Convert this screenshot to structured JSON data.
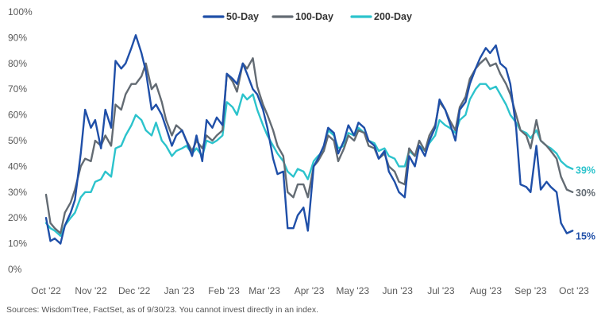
{
  "chart_data": {
    "type": "line",
    "title": "",
    "xlabel": "",
    "ylabel": "",
    "ylim": [
      0,
      100
    ],
    "y_ticks": [
      0,
      10,
      20,
      30,
      40,
      50,
      60,
      70,
      80,
      90,
      100
    ],
    "y_tick_labels": [
      "0%",
      "10%",
      "20%",
      "30%",
      "40%",
      "50%",
      "60%",
      "70%",
      "80%",
      "90%",
      "100%"
    ],
    "x_range": [
      "2022-10-01",
      "2023-09-30"
    ],
    "x_ticks": [
      "2022-10-01",
      "2022-11-01",
      "2022-12-01",
      "2023-01-01",
      "2023-02-01",
      "2023-03-01",
      "2023-04-01",
      "2023-05-01",
      "2023-06-01",
      "2023-07-01",
      "2023-08-01",
      "2023-09-01",
      "2023-10-01"
    ],
    "x_tick_labels": [
      "Oct '22",
      "Nov '22",
      "Dec '22",
      "Jan '23",
      "Feb '23",
      "Mar '23",
      "Apr '23",
      "May '23",
      "Jun '23",
      "Jul '23",
      "Aug '23",
      "Sep '23",
      "Oct '23"
    ],
    "grid": false,
    "legend_position": "top-center",
    "series": [
      {
        "name": "50-Day",
        "color": "#1f4fa8",
        "end_label": "15%",
        "x": [
          "2022-10-01",
          "2022-10-04",
          "2022-10-07",
          "2022-10-11",
          "2022-10-14",
          "2022-10-18",
          "2022-10-21",
          "2022-10-25",
          "2022-10-28",
          "2022-11-01",
          "2022-11-04",
          "2022-11-08",
          "2022-11-11",
          "2022-11-15",
          "2022-11-18",
          "2022-11-22",
          "2022-11-25",
          "2022-11-29",
          "2022-12-02",
          "2022-12-06",
          "2022-12-09",
          "2022-12-13",
          "2022-12-16",
          "2022-12-20",
          "2022-12-23",
          "2022-12-27",
          "2022-12-30",
          "2023-01-03",
          "2023-01-06",
          "2023-01-10",
          "2023-01-13",
          "2023-01-17",
          "2023-01-20",
          "2023-01-24",
          "2023-01-27",
          "2023-01-31",
          "2023-02-03",
          "2023-02-07",
          "2023-02-10",
          "2023-02-14",
          "2023-02-17",
          "2023-02-21",
          "2023-02-24",
          "2023-02-28",
          "2023-03-03",
          "2023-03-07",
          "2023-03-10",
          "2023-03-14",
          "2023-03-17",
          "2023-03-21",
          "2023-03-24",
          "2023-03-28",
          "2023-03-31",
          "2023-04-04",
          "2023-04-07",
          "2023-04-11",
          "2023-04-14",
          "2023-04-18",
          "2023-04-21",
          "2023-04-25",
          "2023-04-28",
          "2023-05-02",
          "2023-05-05",
          "2023-05-09",
          "2023-05-12",
          "2023-05-16",
          "2023-05-19",
          "2023-05-23",
          "2023-05-26",
          "2023-05-30",
          "2023-06-02",
          "2023-06-06",
          "2023-06-09",
          "2023-06-13",
          "2023-06-16",
          "2023-06-20",
          "2023-06-23",
          "2023-06-27",
          "2023-06-30",
          "2023-07-04",
          "2023-07-07",
          "2023-07-11",
          "2023-07-14",
          "2023-07-18",
          "2023-07-21",
          "2023-07-25",
          "2023-07-28",
          "2023-08-01",
          "2023-08-04",
          "2023-08-08",
          "2023-08-11",
          "2023-08-15",
          "2023-08-18",
          "2023-08-22",
          "2023-08-25",
          "2023-08-29",
          "2023-09-01",
          "2023-09-05",
          "2023-09-08",
          "2023-09-12",
          "2023-09-15",
          "2023-09-19",
          "2023-09-22",
          "2023-09-26",
          "2023-09-30"
        ],
        "values": [
          20,
          11,
          12,
          10,
          17,
          22,
          27,
          45,
          62,
          55,
          58,
          47,
          62,
          55,
          81,
          78,
          80,
          86,
          91,
          84,
          77,
          62,
          64,
          60,
          55,
          48,
          52,
          54,
          50,
          44,
          52,
          42,
          58,
          55,
          59,
          56,
          76,
          74,
          72,
          80,
          76,
          70,
          68,
          62,
          55,
          43,
          37,
          38,
          16,
          16,
          21,
          24,
          15,
          40,
          43,
          48,
          55,
          53,
          45,
          50,
          56,
          52,
          57,
          55,
          50,
          48,
          43,
          46,
          38,
          34,
          30,
          28,
          44,
          40,
          48,
          44,
          50,
          55,
          66,
          62,
          57,
          50,
          62,
          65,
          72,
          78,
          82,
          86,
          84,
          87,
          80,
          78,
          72,
          55,
          33,
          32,
          30,
          48,
          31,
          34,
          32,
          30,
          18,
          14,
          15
        ]
      },
      {
        "name": "100-Day",
        "color": "#636b73",
        "end_label": "30%",
        "x": [
          "2022-10-01",
          "2022-10-04",
          "2022-10-07",
          "2022-10-11",
          "2022-10-14",
          "2022-10-18",
          "2022-10-21",
          "2022-10-25",
          "2022-10-28",
          "2022-11-01",
          "2022-11-04",
          "2022-11-08",
          "2022-11-11",
          "2022-11-15",
          "2022-11-18",
          "2022-11-22",
          "2022-11-25",
          "2022-11-29",
          "2022-12-02",
          "2022-12-06",
          "2022-12-09",
          "2022-12-13",
          "2022-12-16",
          "2022-12-20",
          "2022-12-23",
          "2022-12-27",
          "2022-12-30",
          "2023-01-03",
          "2023-01-06",
          "2023-01-10",
          "2023-01-13",
          "2023-01-17",
          "2023-01-20",
          "2023-01-24",
          "2023-01-27",
          "2023-01-31",
          "2023-02-03",
          "2023-02-07",
          "2023-02-10",
          "2023-02-14",
          "2023-02-17",
          "2023-02-21",
          "2023-02-24",
          "2023-02-28",
          "2023-03-03",
          "2023-03-07",
          "2023-03-10",
          "2023-03-14",
          "2023-03-17",
          "2023-03-21",
          "2023-03-24",
          "2023-03-28",
          "2023-03-31",
          "2023-04-04",
          "2023-04-07",
          "2023-04-11",
          "2023-04-14",
          "2023-04-18",
          "2023-04-21",
          "2023-04-25",
          "2023-04-28",
          "2023-05-02",
          "2023-05-05",
          "2023-05-09",
          "2023-05-12",
          "2023-05-16",
          "2023-05-19",
          "2023-05-23",
          "2023-05-26",
          "2023-05-30",
          "2023-06-02",
          "2023-06-06",
          "2023-06-09",
          "2023-06-13",
          "2023-06-16",
          "2023-06-20",
          "2023-06-23",
          "2023-06-27",
          "2023-06-30",
          "2023-07-04",
          "2023-07-07",
          "2023-07-11",
          "2023-07-14",
          "2023-07-18",
          "2023-07-21",
          "2023-07-25",
          "2023-07-28",
          "2023-08-01",
          "2023-08-04",
          "2023-08-08",
          "2023-08-11",
          "2023-08-15",
          "2023-08-18",
          "2023-08-22",
          "2023-08-25",
          "2023-08-29",
          "2023-09-01",
          "2023-09-05",
          "2023-09-08",
          "2023-09-12",
          "2023-09-15",
          "2023-09-19",
          "2023-09-22",
          "2023-09-26",
          "2023-09-30"
        ],
        "values": [
          29,
          18,
          16,
          14,
          22,
          26,
          31,
          40,
          43,
          42,
          50,
          48,
          52,
          48,
          64,
          62,
          68,
          72,
          72,
          75,
          80,
          70,
          72,
          65,
          58,
          52,
          56,
          54,
          50,
          46,
          50,
          47,
          52,
          50,
          52,
          54,
          76,
          73,
          69,
          80,
          78,
          82,
          71,
          64,
          60,
          54,
          48,
          44,
          30,
          28,
          33,
          33,
          28,
          40,
          42,
          46,
          52,
          50,
          42,
          47,
          52,
          50,
          54,
          53,
          48,
          47,
          43,
          45,
          40,
          38,
          34,
          33,
          47,
          44,
          50,
          46,
          52,
          56,
          65,
          62,
          58,
          54,
          63,
          67,
          74,
          78,
          80,
          82,
          79,
          80,
          76,
          72,
          68,
          60,
          54,
          52,
          47,
          58,
          50,
          48,
          46,
          43,
          36,
          31,
          30
        ]
      },
      {
        "name": "200-Day",
        "color": "#2cc3cc",
        "end_label": "39%",
        "x": [
          "2022-10-01",
          "2022-10-04",
          "2022-10-07",
          "2022-10-11",
          "2022-10-14",
          "2022-10-18",
          "2022-10-21",
          "2022-10-25",
          "2022-10-28",
          "2022-11-01",
          "2022-11-04",
          "2022-11-08",
          "2022-11-11",
          "2022-11-15",
          "2022-11-18",
          "2022-11-22",
          "2022-11-25",
          "2022-11-29",
          "2022-12-02",
          "2022-12-06",
          "2022-12-09",
          "2022-12-13",
          "2022-12-16",
          "2022-12-20",
          "2022-12-23",
          "2022-12-27",
          "2022-12-30",
          "2023-01-03",
          "2023-01-06",
          "2023-01-10",
          "2023-01-13",
          "2023-01-17",
          "2023-01-20",
          "2023-01-24",
          "2023-01-27",
          "2023-01-31",
          "2023-02-03",
          "2023-02-07",
          "2023-02-10",
          "2023-02-14",
          "2023-02-17",
          "2023-02-21",
          "2023-02-24",
          "2023-02-28",
          "2023-03-03",
          "2023-03-07",
          "2023-03-10",
          "2023-03-14",
          "2023-03-17",
          "2023-03-21",
          "2023-03-24",
          "2023-03-28",
          "2023-03-31",
          "2023-04-04",
          "2023-04-07",
          "2023-04-11",
          "2023-04-14",
          "2023-04-18",
          "2023-04-21",
          "2023-04-25",
          "2023-04-28",
          "2023-05-02",
          "2023-05-05",
          "2023-05-09",
          "2023-05-12",
          "2023-05-16",
          "2023-05-19",
          "2023-05-23",
          "2023-05-26",
          "2023-05-30",
          "2023-06-02",
          "2023-06-06",
          "2023-06-09",
          "2023-06-13",
          "2023-06-16",
          "2023-06-20",
          "2023-06-23",
          "2023-06-27",
          "2023-06-30",
          "2023-07-04",
          "2023-07-07",
          "2023-07-11",
          "2023-07-14",
          "2023-07-18",
          "2023-07-21",
          "2023-07-25",
          "2023-07-28",
          "2023-08-01",
          "2023-08-04",
          "2023-08-08",
          "2023-08-11",
          "2023-08-15",
          "2023-08-18",
          "2023-08-22",
          "2023-08-25",
          "2023-08-29",
          "2023-09-01",
          "2023-09-05",
          "2023-09-08",
          "2023-09-12",
          "2023-09-15",
          "2023-09-19",
          "2023-09-22",
          "2023-09-26",
          "2023-09-30"
        ],
        "values": [
          18,
          16,
          15,
          13,
          17,
          20,
          22,
          28,
          30,
          30,
          34,
          35,
          38,
          36,
          47,
          48,
          52,
          56,
          60,
          58,
          54,
          52,
          57,
          50,
          48,
          44,
          46,
          47,
          48,
          45,
          47,
          44,
          50,
          49,
          50,
          52,
          65,
          63,
          60,
          68,
          66,
          68,
          62,
          56,
          52,
          48,
          45,
          42,
          38,
          36,
          39,
          38,
          35,
          42,
          44,
          46,
          54,
          52,
          47,
          48,
          53,
          52,
          55,
          53,
          50,
          49,
          46,
          47,
          44,
          43,
          40,
          40,
          46,
          44,
          48,
          46,
          49,
          52,
          58,
          56,
          55,
          53,
          58,
          60,
          66,
          70,
          72,
          72,
          70,
          71,
          68,
          64,
          60,
          57,
          54,
          53,
          51,
          54,
          50,
          48,
          47,
          45,
          42,
          40,
          39
        ]
      }
    ]
  },
  "source_text": "Sources: WisdomTree, FactSet, as of 9/30/23. You cannot invest directly in an index."
}
